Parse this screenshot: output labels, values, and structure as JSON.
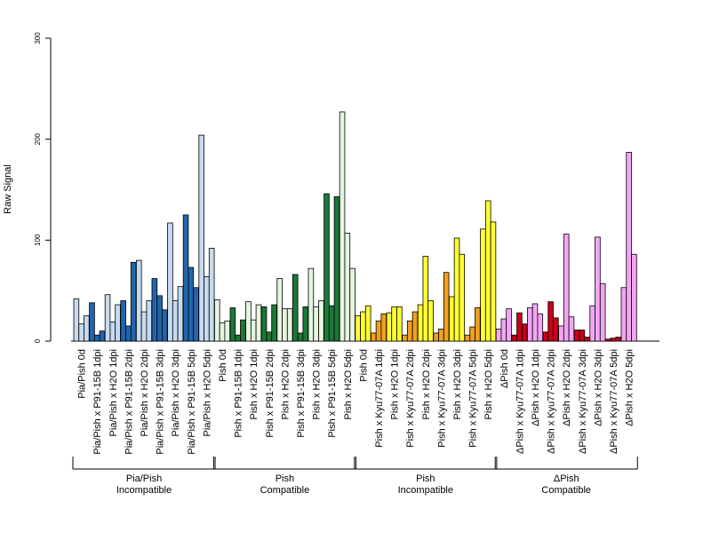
{
  "chart_data": {
    "type": "bar",
    "ylabel": "Raw Signal",
    "xlabel": "",
    "title": "",
    "ylim": [
      0,
      300
    ],
    "yticks": [
      0,
      100,
      200,
      300
    ],
    "replicates_per_condition": 3,
    "groups": [
      {
        "name": "Pia/Pish",
        "sublabel": "Incompatible"
      },
      {
        "name": "Pish",
        "sublabel": "Compatible"
      },
      {
        "name": "Pish",
        "sublabel": "Incompatible"
      },
      {
        "name": "ΔPish",
        "sublabel": "Compatible"
      }
    ],
    "conditions": [
      {
        "label": "Pia/Pish 0d",
        "group": 0,
        "color": "#c6dbef",
        "values": [
          42,
          17,
          25
        ]
      },
      {
        "label": "Pia/Pish x P91-15B 1dpi",
        "group": 0,
        "color": "#2166ac",
        "values": [
          38,
          6,
          10
        ]
      },
      {
        "label": "Pia/Pish x H2O 1dpi",
        "group": 0,
        "color": "#c6dbef",
        "values": [
          46,
          19,
          36
        ]
      },
      {
        "label": "Pia/Pish x P91-15B 2dpi",
        "group": 0,
        "color": "#2166ac",
        "values": [
          40,
          15,
          78
        ]
      },
      {
        "label": "Pia/Pish x H2O 2dpi",
        "group": 0,
        "color": "#c6dbef",
        "values": [
          80,
          29,
          40
        ]
      },
      {
        "label": "Pia/Pish x P91-15B 3dpi",
        "group": 0,
        "color": "#2166ac",
        "values": [
          62,
          45,
          31
        ]
      },
      {
        "label": "Pia/Pish x H2O 3dpi",
        "group": 0,
        "color": "#c6dbef",
        "values": [
          117,
          40,
          54
        ]
      },
      {
        "label": "Pia/Pish x P91-15B 5dpi",
        "group": 0,
        "color": "#2166ac",
        "values": [
          125,
          73,
          53
        ]
      },
      {
        "label": "Pia/Pish x H2O 5dpi",
        "group": 0,
        "color": "#c6dbef",
        "values": [
          204,
          64,
          92
        ]
      },
      {
        "label": "Pish 0d",
        "group": 1,
        "color": "#e5f5e0",
        "values": [
          41,
          18,
          20
        ]
      },
      {
        "label": "Pish x P91-15B 1dpi",
        "group": 1,
        "color": "#1b7837",
        "values": [
          33,
          6,
          21
        ]
      },
      {
        "label": "Pish x H2O 1dpi",
        "group": 1,
        "color": "#e5f5e0",
        "values": [
          39,
          21,
          36
        ]
      },
      {
        "label": "Pish x P91-15B 2dpi",
        "group": 1,
        "color": "#1b7837",
        "values": [
          34,
          9,
          36
        ]
      },
      {
        "label": "Pish x H2O 2dpi",
        "group": 1,
        "color": "#e5f5e0",
        "values": [
          62,
          32,
          32
        ]
      },
      {
        "label": "Pish x P91-15B 3dpi",
        "group": 1,
        "color": "#1b7837",
        "values": [
          66,
          8,
          34
        ]
      },
      {
        "label": "Pish x H2O 3dpi",
        "group": 1,
        "color": "#e5f5e0",
        "values": [
          72,
          34,
          40
        ]
      },
      {
        "label": "Pish x P91-15B 5dpi",
        "group": 1,
        "color": "#1b7837",
        "values": [
          146,
          35,
          143
        ]
      },
      {
        "label": "Pish x H2O 5dpi",
        "group": 1,
        "color": "#e5f5e0",
        "values": [
          227,
          107,
          72
        ]
      },
      {
        "label": "Pish 0d",
        "group": 2,
        "color": "#ffff33",
        "values": [
          25,
          29,
          35
        ]
      },
      {
        "label": "Pish x Kyu77-07A 1dpi",
        "group": 2,
        "color": "#f0a020",
        "values": [
          8,
          20,
          27
        ]
      },
      {
        "label": "Pish x H2O 1dpi",
        "group": 2,
        "color": "#ffff33",
        "values": [
          28,
          34,
          34
        ]
      },
      {
        "label": "Pish x Kyu77-07A 2dpi",
        "group": 2,
        "color": "#f0a020",
        "values": [
          6,
          20,
          29
        ]
      },
      {
        "label": "Pish x H2O 2dpi",
        "group": 2,
        "color": "#ffff33",
        "values": [
          36,
          84,
          40
        ]
      },
      {
        "label": "Pish x Kyu77-07A 3dpi",
        "group": 2,
        "color": "#f0a020",
        "values": [
          8,
          12,
          68
        ]
      },
      {
        "label": "Pish x H2O 3dpi",
        "group": 2,
        "color": "#ffff33",
        "values": [
          44,
          102,
          86
        ]
      },
      {
        "label": "Pish x Kyu77-07A 5dpi",
        "group": 2,
        "color": "#f0a020",
        "values": [
          6,
          14,
          33
        ]
      },
      {
        "label": "Pish x H2O 5dpi",
        "group": 2,
        "color": "#ffff33",
        "values": [
          111,
          139,
          118
        ]
      },
      {
        "label": "ΔPish 0d",
        "group": 3,
        "color": "#f4a6f4",
        "values": [
          12,
          22,
          32
        ]
      },
      {
        "label": "ΔPish x Kyu77-07A 1dpi",
        "group": 3,
        "color": "#c8001a",
        "values": [
          6,
          28,
          17
        ]
      },
      {
        "label": "ΔPish x H2O 1dpi",
        "group": 3,
        "color": "#f4a6f4",
        "values": [
          33,
          37,
          27
        ]
      },
      {
        "label": "ΔPish x Kyu77-07A 2dpi",
        "group": 3,
        "color": "#c8001a",
        "values": [
          9,
          39,
          23
        ]
      },
      {
        "label": "ΔPish x H2O 2dpi",
        "group": 3,
        "color": "#f4a6f4",
        "values": [
          15,
          106,
          24
        ]
      },
      {
        "label": "ΔPish x Kyu77-07A 3dpi",
        "group": 3,
        "color": "#c8001a",
        "values": [
          11,
          11,
          4
        ]
      },
      {
        "label": "ΔPish x H2O 3dpi",
        "group": 3,
        "color": "#f4a6f4",
        "values": [
          35,
          103,
          57
        ]
      },
      {
        "label": "ΔPish x Kyu77-07A 5dpi",
        "group": 3,
        "color": "#c8001a",
        "values": [
          2,
          3,
          4
        ]
      },
      {
        "label": "ΔPish x H2O 5dpi",
        "group": 3,
        "color": "#f4a6f4",
        "values": [
          53,
          187,
          86
        ]
      }
    ]
  }
}
